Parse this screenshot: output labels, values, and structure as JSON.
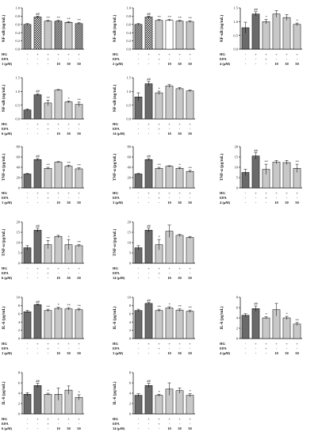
{
  "treatment_rows": [
    "HG",
    "EPA"
  ],
  "chart_data": [
    {
      "type": "bar",
      "ylabel": "NF-κB (ng/mL)",
      "ylim": [
        0,
        1
      ],
      "yticks": [
        "0.0",
        "0.2",
        "0.4",
        "0.6",
        "0.8",
        "1.0"
      ],
      "compound_label": "1 (μM)",
      "conc_labels": [
        "-",
        "-",
        "-",
        "10",
        "30",
        "50"
      ],
      "hg": [
        "-",
        "+",
        "+",
        "+",
        "+",
        "+"
      ],
      "epa": [
        "-",
        "-",
        "+",
        "-",
        "-",
        "-"
      ],
      "values": [
        0.6,
        0.78,
        0.68,
        0.68,
        0.65,
        0.62
      ],
      "errors": [
        0.02,
        0.02,
        0.02,
        0.02,
        0.02,
        0.02
      ],
      "marks": [
        "",
        "##",
        "**",
        "**",
        "**",
        "**"
      ],
      "patterns": [
        "hatch",
        "check",
        "stripe",
        "hatch",
        "stripe",
        "hatch"
      ]
    },
    {
      "type": "bar",
      "ylabel": "NF-κB (ng/mL)",
      "ylim": [
        0,
        1
      ],
      "yticks": [
        "0.0",
        "0.2",
        "0.4",
        "0.6",
        "0.8",
        "1.0"
      ],
      "compound_label": "2 (μM)",
      "conc_labels": [
        "-",
        "-",
        "-",
        "10",
        "30",
        "50"
      ],
      "hg": [
        "-",
        "+",
        "+",
        "+",
        "+",
        "+"
      ],
      "epa": [
        "-",
        "-",
        "+",
        "-",
        "-",
        "-"
      ],
      "values": [
        0.6,
        0.78,
        0.7,
        0.7,
        0.68,
        0.67
      ],
      "errors": [
        0.02,
        0.02,
        0.02,
        0.02,
        0.02,
        0.02
      ],
      "marks": [
        "",
        "##",
        "**",
        "**",
        "**",
        "**"
      ],
      "patterns": [
        "hatch",
        "check",
        "stripe",
        "plain",
        "stripe",
        "stripe"
      ]
    },
    {
      "type": "bar",
      "ylabel": "NF-κB (ng/mL)",
      "ylim": [
        0,
        1.5
      ],
      "yticks": [
        "0.0",
        "0.5",
        "1.0",
        "1.5"
      ],
      "compound_label": "4 (μM)",
      "conc_labels": [
        "-",
        "-",
        "-",
        "10",
        "30",
        "50"
      ],
      "hg": [
        "-",
        "+",
        "+",
        "+",
        "+",
        "+"
      ],
      "epa": [
        "-",
        "-",
        "+",
        "-",
        "-",
        "-"
      ],
      "values": [
        0.78,
        1.28,
        1.0,
        1.28,
        1.15,
        0.9
      ],
      "errors": [
        0.2,
        0.08,
        0.08,
        0.12,
        0.1,
        0.05
      ],
      "marks": [
        "",
        "##",
        "*",
        "",
        "",
        "*"
      ],
      "patterns": [
        "dark",
        "dark",
        "light",
        "light",
        "light",
        "light"
      ]
    },
    {
      "type": "bar",
      "ylabel": "NF-κB (ng/mL)",
      "ylim": [
        0,
        1.5
      ],
      "yticks": [
        "0.0",
        "0.5",
        "1.0",
        "1.5"
      ],
      "compound_label": "6 (μM)",
      "conc_labels": [
        "-",
        "-",
        "-",
        "10",
        "30",
        "50"
      ],
      "hg": [
        "-",
        "+",
        "+",
        "+",
        "+",
        "+"
      ],
      "epa": [
        "-",
        "-",
        "+",
        "-",
        "-",
        "-"
      ],
      "values": [
        0.33,
        0.88,
        0.58,
        1.05,
        0.62,
        0.53
      ],
      "errors": [
        0.03,
        0.04,
        0.1,
        0.02,
        0.03,
        0.08
      ],
      "marks": [
        "",
        "##",
        "**",
        "",
        "*",
        "**"
      ],
      "patterns": [
        "dark",
        "dark",
        "light",
        "light",
        "light",
        "light"
      ]
    },
    {
      "type": "bar",
      "ylabel": "NF-κB (ng/mL)",
      "ylim": [
        0,
        1.5
      ],
      "yticks": [
        "0.0",
        "0.5",
        "1.0",
        "1.5"
      ],
      "compound_label": "14 (μM)",
      "conc_labels": [
        "-",
        "-",
        "-",
        "10",
        "30",
        "50"
      ],
      "hg": [
        "-",
        "+",
        "+",
        "+",
        "+",
        "+"
      ],
      "epa": [
        "-",
        "-",
        "+",
        "-",
        "-",
        "-"
      ],
      "values": [
        0.8,
        1.28,
        0.95,
        1.2,
        1.1,
        1.02
      ],
      "errors": [
        0.15,
        0.08,
        0.06,
        0.05,
        0.04,
        0.03
      ],
      "marks": [
        "",
        "##",
        "*",
        "",
        "",
        ""
      ],
      "patterns": [
        "dark",
        "dark",
        "light",
        "light",
        "light",
        "light"
      ]
    },
    {
      "type": "bar",
      "ylabel": "TNF-α (pg/mL)",
      "ylim": [
        0,
        80
      ],
      "yticks": [
        "0",
        "20",
        "40",
        "60",
        "80"
      ],
      "compound_label": "1 (μM)",
      "conc_labels": [
        "-",
        "-",
        "-",
        "10",
        "30",
        "50"
      ],
      "hg": [
        "-",
        "+",
        "+",
        "+",
        "+",
        "+"
      ],
      "epa": [
        "-",
        "-",
        "+",
        "-",
        "-",
        "-"
      ],
      "values": [
        27,
        55,
        38,
        50,
        42,
        37
      ],
      "errors": [
        1,
        2,
        2,
        1,
        2,
        2
      ],
      "marks": [
        "",
        "##",
        "**",
        "",
        "**",
        "**"
      ],
      "patterns": [
        "dark",
        "dark",
        "light",
        "light",
        "light",
        "light"
      ]
    },
    {
      "type": "bar",
      "ylabel": "TNF-α (pg/mL)",
      "ylim": [
        0,
        80
      ],
      "yticks": [
        "0",
        "20",
        "40",
        "60",
        "80"
      ],
      "compound_label": "3 (μM)",
      "conc_labels": [
        "-",
        "-",
        "-",
        "10",
        "30",
        "50"
      ],
      "hg": [
        "-",
        "+",
        "+",
        "+",
        "+",
        "+"
      ],
      "epa": [
        "-",
        "-",
        "+",
        "-",
        "-",
        "-"
      ],
      "values": [
        27,
        55,
        38,
        42,
        38,
        32
      ],
      "errors": [
        1,
        2,
        2,
        1,
        2,
        2
      ],
      "marks": [
        "",
        "##",
        "**",
        "",
        "*",
        "**"
      ],
      "patterns": [
        "dark",
        "dark",
        "light",
        "light",
        "light",
        "light"
      ]
    },
    {
      "type": "bar",
      "ylabel": "TNF-α (pg/mL)",
      "ylim": [
        0,
        20
      ],
      "yticks": [
        "0",
        "5",
        "10",
        "15",
        "20"
      ],
      "compound_label": "4 (μM)",
      "conc_labels": [
        "-",
        "-",
        "-",
        "10",
        "30",
        "50"
      ],
      "hg": [
        "-",
        "+",
        "+",
        "+",
        "+",
        "+"
      ],
      "epa": [
        "-",
        "-",
        "+",
        "-",
        "-",
        "-"
      ],
      "values": [
        7.5,
        15.5,
        9,
        12.5,
        12.3,
        9.5
      ],
      "errors": [
        1.5,
        1.5,
        2.5,
        0.8,
        1,
        2
      ],
      "marks": [
        "",
        "##",
        "**",
        "",
        "",
        "**"
      ],
      "patterns": [
        "dark",
        "dark",
        "light",
        "light",
        "light",
        "light"
      ]
    },
    {
      "type": "bar",
      "ylabel": "TNF-α (pg/mL)",
      "ylim": [
        0,
        20
      ],
      "yticks": [
        "0",
        "5",
        "10",
        "15",
        "20"
      ],
      "compound_label": "6 (μM)",
      "conc_labels": [
        "-",
        "-",
        "-",
        "10",
        "30",
        "50"
      ],
      "hg": [
        "-",
        "+",
        "+",
        "+",
        "+",
        "+"
      ],
      "epa": [
        "-",
        "-",
        "+",
        "-",
        "-",
        "-"
      ],
      "values": [
        7.5,
        16,
        9,
        13,
        9,
        8.5
      ],
      "errors": [
        1,
        1,
        2,
        0.5,
        2.5,
        0.5
      ],
      "marks": [
        "",
        "##",
        "**",
        "",
        "*",
        "**"
      ],
      "patterns": [
        "dark",
        "dark",
        "light",
        "light",
        "light",
        "light"
      ]
    },
    {
      "type": "bar",
      "ylabel": "TNF-α (pg/mL)",
      "ylim": [
        0,
        20
      ],
      "yticks": [
        "0",
        "5",
        "10",
        "15",
        "20"
      ],
      "compound_label": "14 (μM)",
      "conc_labels": [
        "-",
        "-",
        "-",
        "10",
        "30",
        "50"
      ],
      "hg": [
        "-",
        "+",
        "+",
        "+",
        "+",
        "+"
      ],
      "epa": [
        "-",
        "-",
        "+",
        "-",
        "-",
        "-"
      ],
      "values": [
        7.5,
        16,
        9,
        15.5,
        13.5,
        12.5
      ],
      "errors": [
        1,
        1,
        2.5,
        3,
        0.5,
        0.5
      ],
      "marks": [
        "",
        "##",
        "*",
        "",
        "",
        ""
      ],
      "patterns": [
        "dark",
        "dark",
        "light",
        "light",
        "light",
        "light"
      ]
    },
    {
      "type": "bar",
      "ylabel": "IL-6 (pg/mL)",
      "ylim": [
        0,
        10
      ],
      "yticks": [
        "0",
        "2",
        "4",
        "6",
        "8",
        "10"
      ],
      "compound_label": "1 (μM)",
      "conc_labels": [
        "-",
        "-",
        "-",
        "10",
        "30",
        "50"
      ],
      "hg": [
        "-",
        "+",
        "+",
        "+",
        "+",
        "+"
      ],
      "epa": [
        "-",
        "-",
        "+",
        "-",
        "-",
        "-"
      ],
      "values": [
        6.5,
        8.2,
        6.8,
        7.3,
        7.2,
        7
      ],
      "errors": [
        0.3,
        0.2,
        0.3,
        0.3,
        0.3,
        0.3
      ],
      "marks": [
        "",
        "##",
        "**",
        "*",
        "**",
        "**"
      ],
      "patterns": [
        "dark",
        "dark",
        "light",
        "light",
        "light",
        "light"
      ]
    },
    {
      "type": "bar",
      "ylabel": "IL-6 (pg/mL)",
      "ylim": [
        0,
        10
      ],
      "yticks": [
        "0",
        "2",
        "4",
        "6",
        "8",
        "10"
      ],
      "compound_label": "3 (μM)",
      "conc_labels": [
        "-",
        "-",
        "-",
        "10",
        "30",
        "50"
      ],
      "hg": [
        "-",
        "+",
        "+",
        "+",
        "+",
        "+"
      ],
      "epa": [
        "-",
        "-",
        "+",
        "-",
        "-",
        "-"
      ],
      "values": [
        6.8,
        8.5,
        6.8,
        7.4,
        6.9,
        6.6
      ],
      "errors": [
        0.3,
        0.2,
        0.3,
        0.3,
        0.3,
        0.3
      ],
      "marks": [
        "",
        "##",
        "**",
        "*",
        "**",
        "**"
      ],
      "patterns": [
        "dark",
        "dark",
        "light",
        "light",
        "light",
        "light"
      ]
    },
    {
      "type": "bar",
      "ylabel": "IL-6 (pg/mL)",
      "ylim": [
        0,
        8
      ],
      "yticks": [
        "0",
        "2",
        "4",
        "6",
        "8"
      ],
      "compound_label": "4 (μM)",
      "conc_labels": [
        "-",
        "-",
        "-",
        "10",
        "30",
        "50"
      ],
      "hg": [
        "-",
        "+",
        "+",
        "+",
        "+",
        "+"
      ],
      "epa": [
        "-",
        "-",
        "+",
        "-",
        "-",
        "-"
      ],
      "values": [
        4.5,
        5.8,
        4,
        5.6,
        4,
        2.8
      ],
      "errors": [
        0.3,
        0.5,
        0.2,
        1.2,
        0.3,
        0.3
      ],
      "marks": [
        "",
        "##",
        "*",
        "",
        "*",
        "**"
      ],
      "patterns": [
        "dark",
        "dark",
        "light",
        "light",
        "light",
        "light"
      ]
    },
    {
      "type": "bar",
      "ylabel": "IL-6 (pg/mL)",
      "ylim": [
        0,
        8
      ],
      "yticks": [
        "0",
        "2",
        "4",
        "6",
        "8"
      ],
      "compound_label": "6 (μM)",
      "conc_labels": [
        "-",
        "-",
        "-",
        "10",
        "30",
        "50"
      ],
      "hg": [
        "-",
        "+",
        "+",
        "+",
        "+",
        "+"
      ],
      "epa": [
        "-",
        "-",
        "+",
        "-",
        "-",
        "-"
      ],
      "values": [
        3.8,
        5.5,
        3.8,
        3.8,
        4.6,
        3.2
      ],
      "errors": [
        0.3,
        0.4,
        0.2,
        1.2,
        0.8,
        0.5
      ],
      "marks": [
        "",
        "##",
        "*",
        "",
        "",
        "*"
      ],
      "patterns": [
        "dark",
        "dark",
        "light",
        "light",
        "light",
        "light"
      ]
    },
    {
      "type": "bar",
      "ylabel": "IL-6 (pg/mL)",
      "ylim": [
        0,
        8
      ],
      "yticks": [
        "0",
        "2",
        "4",
        "6",
        "8"
      ],
      "compound_label": "14 (μM)",
      "conc_labels": [
        "-",
        "-",
        "-",
        "10",
        "30",
        "50"
      ],
      "hg": [
        "-",
        "+",
        "+",
        "+",
        "+",
        "+"
      ],
      "epa": [
        "-",
        "-",
        "+",
        "-",
        "-",
        "-"
      ],
      "values": [
        3.6,
        5.5,
        3.6,
        4.8,
        4.5,
        3.6
      ],
      "errors": [
        0.3,
        0.4,
        0.2,
        1.2,
        0.5,
        0.3
      ],
      "marks": [
        "",
        "##",
        "*",
        "",
        "",
        "*"
      ],
      "patterns": [
        "dark",
        "dark",
        "light",
        "light",
        "light",
        "light"
      ]
    }
  ]
}
